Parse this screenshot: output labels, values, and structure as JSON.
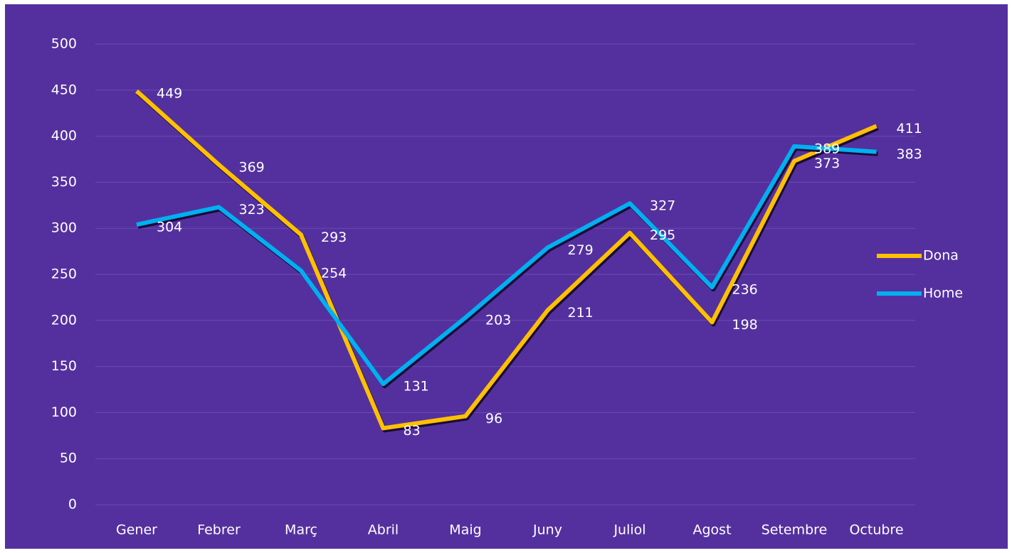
{
  "chart_data": {
    "type": "line",
    "categories": [
      "Gener",
      "Febrer",
      "Març",
      "Abril",
      "Maig",
      "Juny",
      "Juliol",
      "Agost",
      "Setembre",
      "Octubre"
    ],
    "series": [
      {
        "name": "Dona",
        "color": "#ffc000",
        "values": [
          449,
          369,
          293,
          83,
          96,
          211,
          295,
          198,
          373,
          411
        ]
      },
      {
        "name": "Home",
        "color": "#00b0f0",
        "values": [
          304,
          323,
          254,
          131,
          203,
          279,
          327,
          236,
          389,
          383
        ]
      }
    ],
    "ylim": [
      0,
      500
    ],
    "yticks": [
      0,
      50,
      100,
      150,
      200,
      250,
      300,
      350,
      400,
      450,
      500
    ],
    "grid": true,
    "legend": "right",
    "data_labels": true
  }
}
